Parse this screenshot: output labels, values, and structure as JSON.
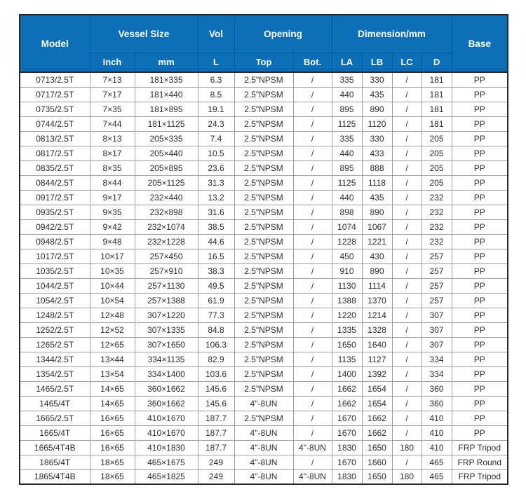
{
  "colors": {
    "header_bg": "#0d6eb8",
    "header_divider": "#0a5a9b",
    "header_text": "#ffffff",
    "body_text": "#2e2e2e",
    "grid_line": "#9e9e9e",
    "outer_border": "#2a2a2a",
    "page_bg": "#ffffff"
  },
  "table": {
    "header": {
      "model": "Model",
      "vessel_size": "Vessel Size",
      "inch": "Inch",
      "mm": "mm",
      "vol": "Vol",
      "l": "L",
      "opening": "Opening",
      "top": "Top",
      "bot": "Bot.",
      "dimension": "Dimension/mm",
      "la": "LA",
      "lb": "LB",
      "lc": "LC",
      "d": "D",
      "base": "Base"
    },
    "rows": [
      [
        "0713/2.5T",
        "7×13",
        "181×335",
        "6.3",
        "2.5\"NPSM",
        "/",
        "335",
        "330",
        "/",
        "181",
        "PP"
      ],
      [
        "0717/2.5T",
        "7×17",
        "181×440",
        "8.5",
        "2.5\"NPSM",
        "/",
        "440",
        "435",
        "/",
        "181",
        "PP"
      ],
      [
        "0735/2.5T",
        "7×35",
        "181×895",
        "19.1",
        "2.5\"NPSM",
        "/",
        "895",
        "890",
        "/",
        "181",
        "PP"
      ],
      [
        "0744/2.5T",
        "7×44",
        "181×1125",
        "24.3",
        "2.5\"NPSM",
        "/",
        "1125",
        "1120",
        "/",
        "181",
        "PP"
      ],
      [
        "0813/2.5T",
        "8×13",
        "205×335",
        "7.4",
        "2.5\"NPSM",
        "/",
        "335",
        "330",
        "/",
        "205",
        "PP"
      ],
      [
        "0817/2.5T",
        "8×17",
        "205×440",
        "10.5",
        "2.5\"NPSM",
        "/",
        "440",
        "433",
        "/",
        "205",
        "PP"
      ],
      [
        "0835/2.5T",
        "8×35",
        "205×895",
        "23.6",
        "2.5\"NPSM",
        "/",
        "895",
        "888",
        "/",
        "205",
        "PP"
      ],
      [
        "0844/2.5T",
        "8×44",
        "205×1125",
        "31.3",
        "2.5\"NPSM",
        "/",
        "1125",
        "1118",
        "/",
        "205",
        "PP"
      ],
      [
        "0917/2.5T",
        "9×17",
        "232×440",
        "13.2",
        "2.5\"NPSM",
        "/",
        "440",
        "435",
        "/",
        "232",
        "PP"
      ],
      [
        "0935/2.5T",
        "9×35",
        "232×898",
        "31.6",
        "2.5\"NPSM",
        "/",
        "898",
        "890",
        "/",
        "232",
        "PP"
      ],
      [
        "0942/2.5T",
        "9×42",
        "232×1074",
        "38.5",
        "2.5\"NPSM",
        "/",
        "1074",
        "1067",
        "/",
        "232",
        "PP"
      ],
      [
        "0948/2.5T",
        "9×48",
        "232×1228",
        "44.6",
        "2.5\"NPSM",
        "/",
        "1228",
        "1221",
        "/",
        "232",
        "PP"
      ],
      [
        "1017/2.5T",
        "10×17",
        "257×450",
        "16.5",
        "2.5\"NPSM",
        "/",
        "450",
        "430",
        "/",
        "257",
        "PP"
      ],
      [
        "1035/2.5T",
        "10×35",
        "257×910",
        "38.3",
        "2.5\"NPSM",
        "/",
        "910",
        "890",
        "/",
        "257",
        "PP"
      ],
      [
        "1044/2.5T",
        "10×44",
        "257×1130",
        "49.5",
        "2.5\"NPSM",
        "/",
        "1130",
        "1114",
        "/",
        "257",
        "PP"
      ],
      [
        "1054/2.5T",
        "10×54",
        "257×1388",
        "61.9",
        "2.5\"NPSM",
        "/",
        "1388",
        "1370",
        "/",
        "257",
        "PP"
      ],
      [
        "1248/2.5T",
        "12×48",
        "307×1220",
        "77.3",
        "2.5\"NPSM",
        "/",
        "1220",
        "1214",
        "/",
        "307",
        "PP"
      ],
      [
        "1252/2.5T",
        "12×52",
        "307×1335",
        "84.8",
        "2.5\"NPSM",
        "/",
        "1335",
        "1328",
        "/",
        "307",
        "PP"
      ],
      [
        "1265/2.5T",
        "12×65",
        "307×1650",
        "106.3",
        "2.5\"NPSM",
        "/",
        "1650",
        "1640",
        "/",
        "307",
        "PP"
      ],
      [
        "1344/2.5T",
        "13×44",
        "334×1135",
        "82.9",
        "2.5\"NPSM",
        "/",
        "1135",
        "1127",
        "/",
        "334",
        "PP"
      ],
      [
        "1354/2.5T",
        "13×54",
        "334×1400",
        "103.6",
        "2.5\"NPSM",
        "/",
        "1400",
        "1392",
        "/",
        "334",
        "PP"
      ],
      [
        "1465/2.5T",
        "14×65",
        "360×1662",
        "145.6",
        "2.5\"NPSM",
        "/",
        "1662",
        "1654",
        "/",
        "360",
        "PP"
      ],
      [
        "1465/4T",
        "14×65",
        "360×1662",
        "145.6",
        "4\"-8UN",
        "/",
        "1662",
        "1654",
        "/",
        "360",
        "PP"
      ],
      [
        "1665/2.5T",
        "16×65",
        "410×1670",
        "187.7",
        "2.5\"NPSM",
        "/",
        "1670",
        "1662",
        "/",
        "410",
        "PP"
      ],
      [
        "1665/4T",
        "16×65",
        "410×1670",
        "187.7",
        "4\"-8UN",
        "/",
        "1670",
        "1662",
        "/",
        "410",
        "PP"
      ],
      [
        "1665/4T4B",
        "16×65",
        "410×1830",
        "187.7",
        "4\"-8UN",
        "4\"-8UN",
        "1830",
        "1650",
        "180",
        "410",
        "FRP Tripod"
      ],
      [
        "1865/4T",
        "18×65",
        "465×1675",
        "249",
        "4\"-8UN",
        "/",
        "1670",
        "1660",
        "/",
        "465",
        "FRP Round"
      ],
      [
        "1865/4T4B",
        "18×65",
        "465×1825",
        "249",
        "4\"-8UN",
        "4\"-8UN",
        "1830",
        "1650",
        "180",
        "465",
        "FRP Tripod"
      ]
    ]
  }
}
